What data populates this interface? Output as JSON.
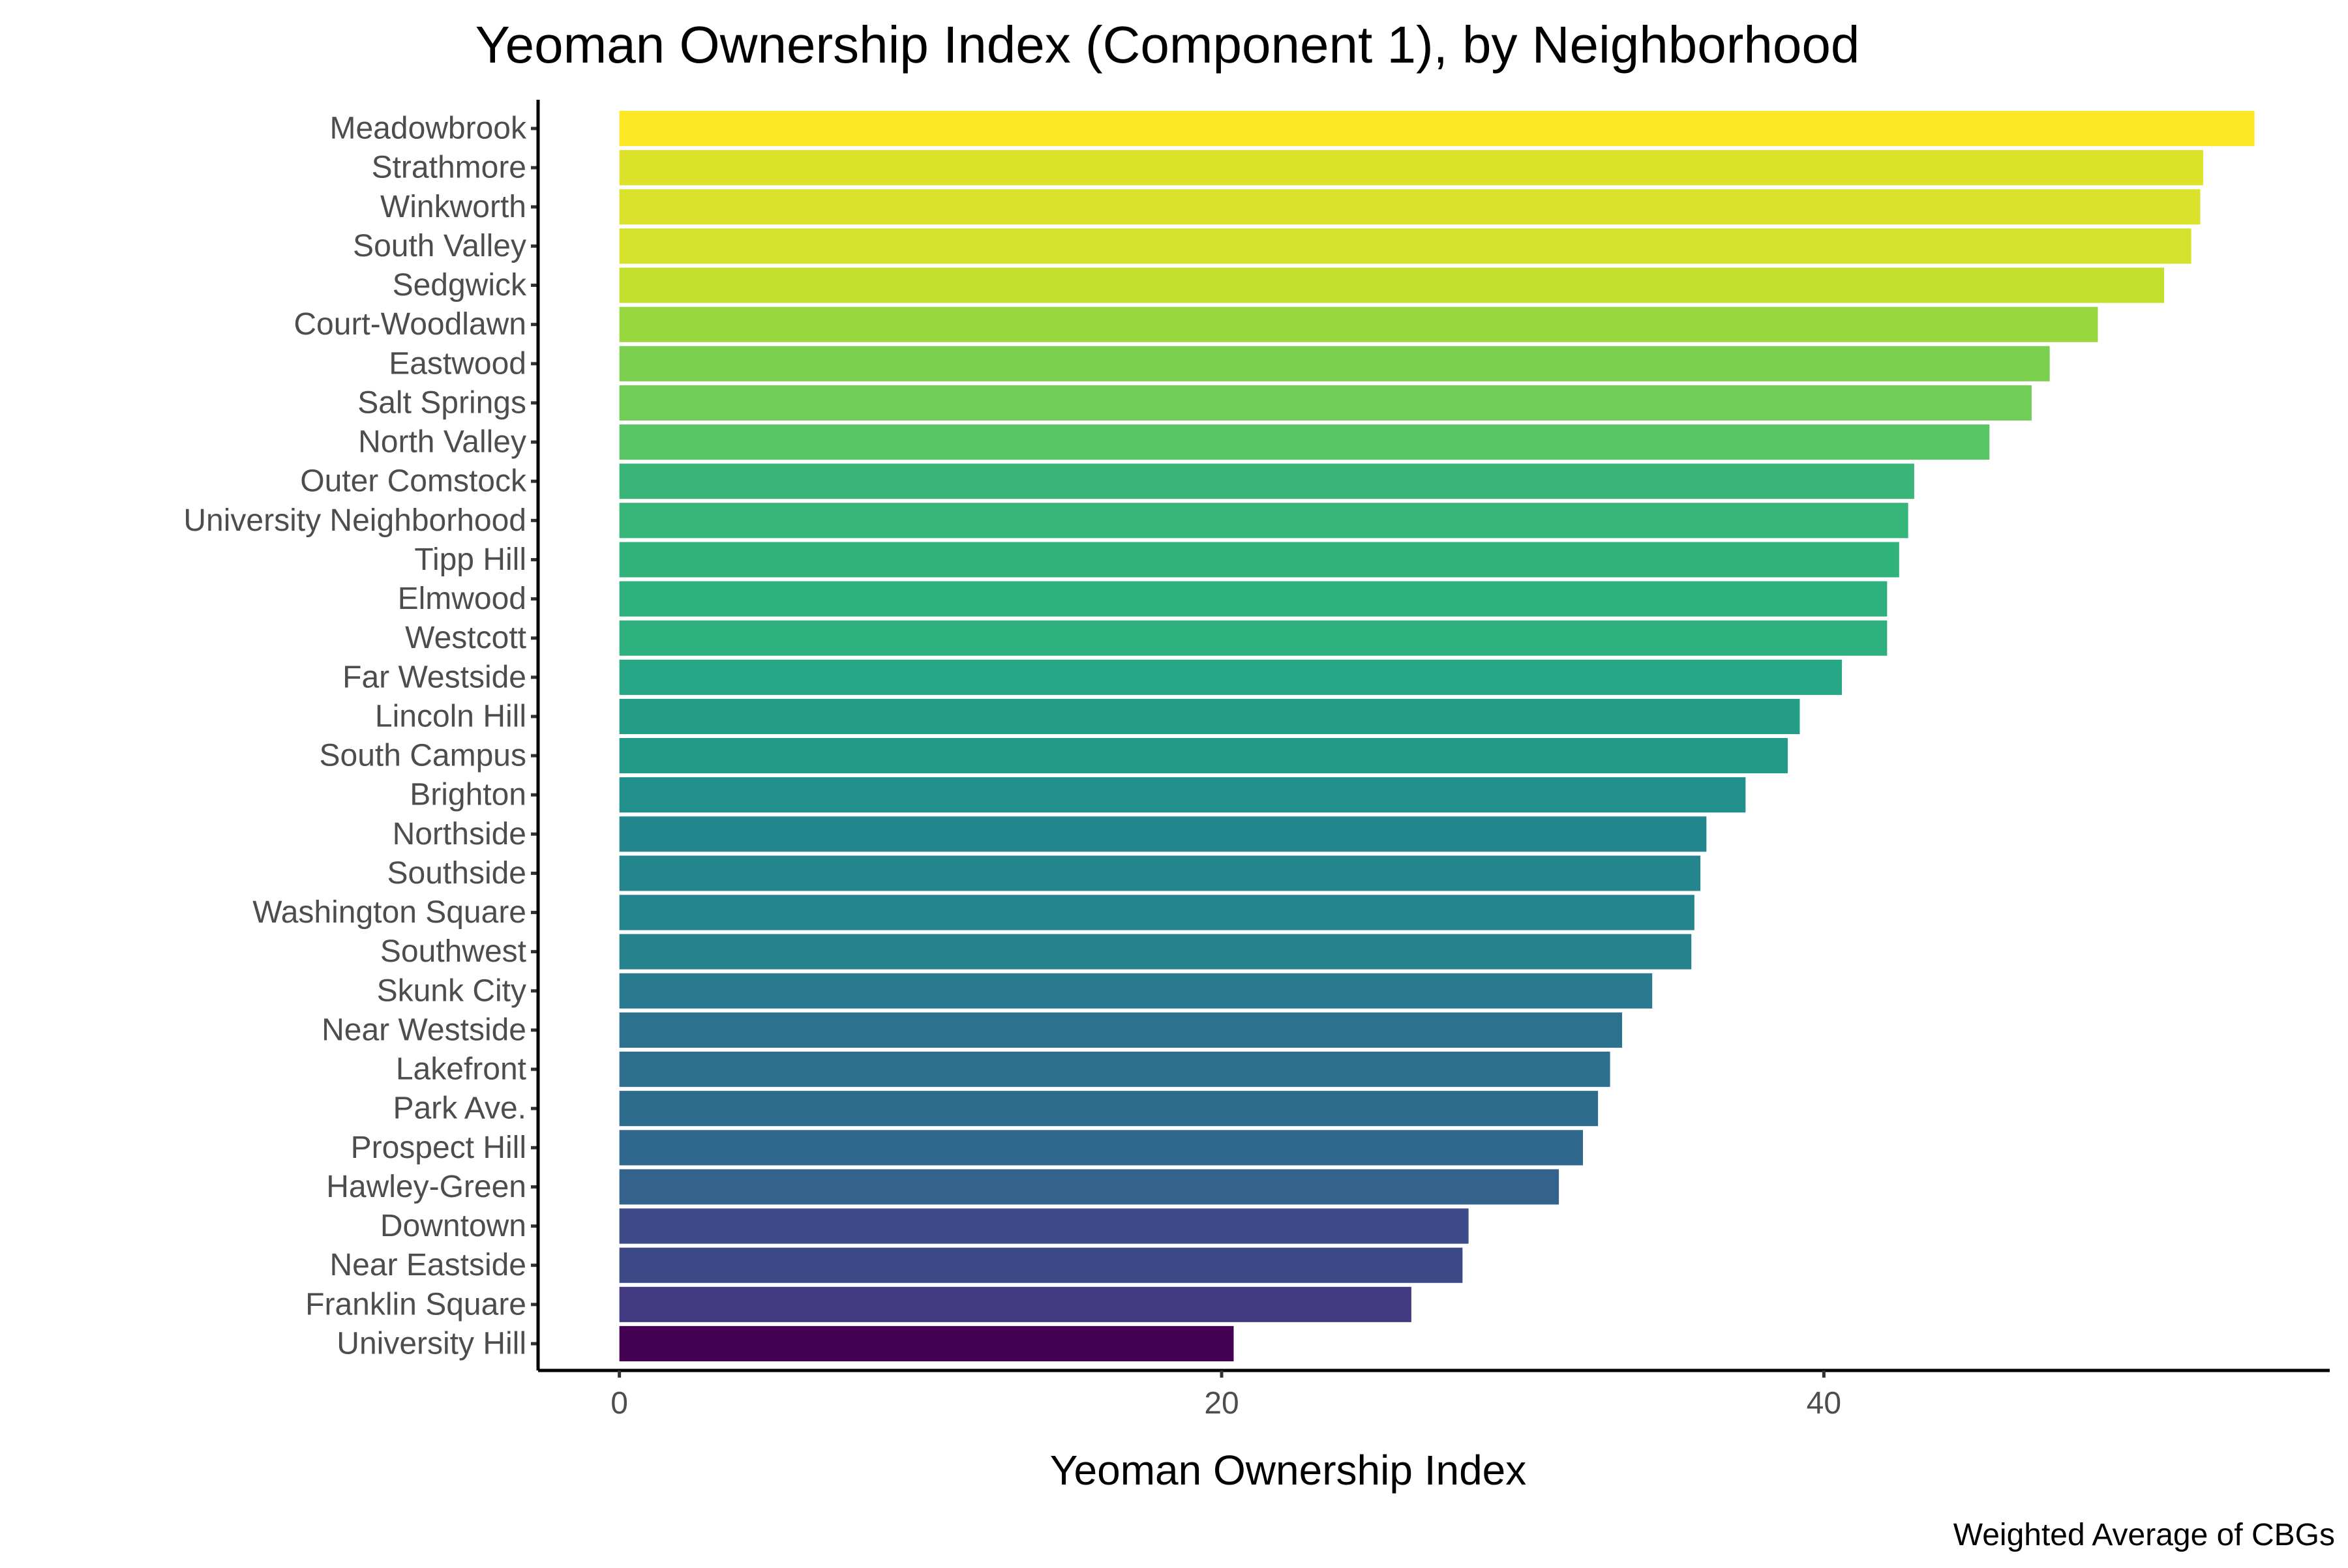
{
  "chart_data": {
    "type": "bar",
    "orientation": "horizontal",
    "title": "Yeoman Ownership Index (Component 1), by Neighborhood",
    "xlabel": "Yeoman Ownership Index",
    "ylabel": "",
    "caption": "Weighted Average of CBGs",
    "xlim": [
      -2.7,
      56.8
    ],
    "x_ticks": [
      0,
      20,
      40
    ],
    "grid": false,
    "legend": "none",
    "colormap": "viridis",
    "categories": [
      "Meadowbrook",
      "Strathmore",
      "Winkworth",
      "South Valley",
      "Sedgwick",
      "Court-Woodlawn",
      "Eastwood",
      "Salt Springs",
      "North Valley",
      "Outer Comstock",
      "University Neighborhood",
      "Tipp Hill",
      "Elmwood",
      "Westcott",
      "Far Westside",
      "Lincoln Hill",
      "South Campus",
      "Brighton",
      "Northside",
      "Southside",
      "Washington Square",
      "Southwest",
      "Skunk City",
      "Near Westside",
      "Lakefront",
      "Park Ave.",
      "Prospect Hill",
      "Hawley-Green",
      "Downtown",
      "Near Eastside",
      "Franklin Square",
      "University Hill"
    ],
    "values": [
      54.3,
      52.6,
      52.5,
      52.2,
      51.3,
      49.1,
      47.5,
      46.9,
      45.5,
      43.0,
      42.8,
      42.5,
      42.1,
      42.1,
      40.6,
      39.2,
      38.8,
      37.4,
      36.1,
      35.9,
      35.7,
      35.6,
      34.3,
      33.3,
      32.9,
      32.5,
      32.0,
      31.2,
      28.2,
      28.0,
      26.3,
      20.4
    ]
  }
}
